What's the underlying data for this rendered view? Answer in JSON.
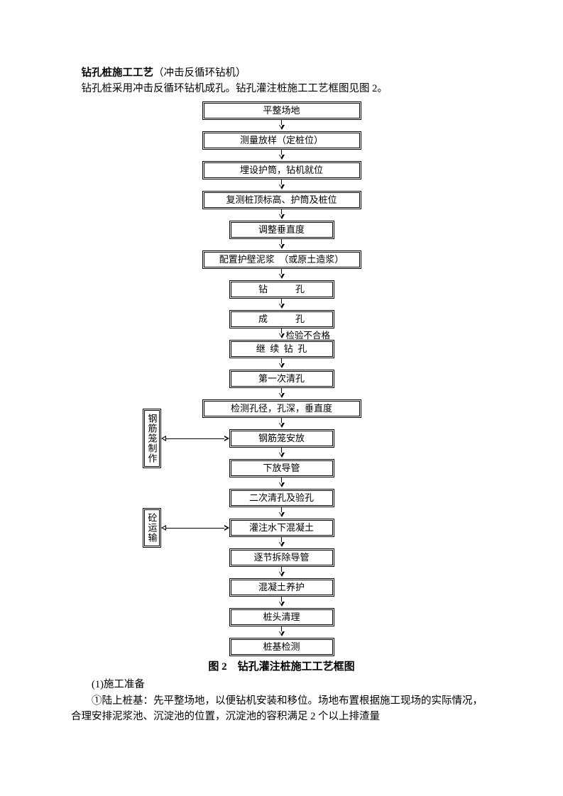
{
  "heading_bold": "钻孔桩施工工艺",
  "heading_rest": "（冲击反循环钻机）",
  "intro": "钻孔桩采用冲击反循环钻机成孔。钻孔灌注桩施工工艺框图见图 2。",
  "flow": {
    "steps": [
      {
        "t": "平整场地",
        "w": "wide"
      },
      {
        "t": "测量放样（定桩位）",
        "w": "wide"
      },
      {
        "t": "埋设护筒，钻机就位",
        "w": "wide"
      },
      {
        "t": "复测桩顶标高、护筒及桩位",
        "w": "wide"
      },
      {
        "t": "调整垂直度",
        "w": "narrow"
      },
      {
        "t": "配置护壁泥浆　（或原土造浆）",
        "w": "wide"
      },
      {
        "t": "钻　　　孔",
        "w": "narrow"
      },
      {
        "t": "成　　　孔",
        "w": "narrow",
        "after_label": "检验不合格"
      },
      {
        "t": "继 续 钻 孔",
        "w": "narrow"
      },
      {
        "t": "第一次清孔",
        "w": "narrow"
      },
      {
        "t": "检测孔径，孔深，垂直度",
        "w": "wide"
      },
      {
        "t": "钢筋笼安放",
        "w": "narrow",
        "side": {
          "key": "s1"
        }
      },
      {
        "t": "下放导管",
        "w": "narrow"
      },
      {
        "t": "二次清孔及验孔",
        "w": "narrow"
      },
      {
        "t": "灌注水下混凝土",
        "w": "narrow",
        "side": {
          "key": "s2"
        }
      },
      {
        "t": "逐节拆除导管",
        "w": "narrow"
      },
      {
        "t": "混凝土养护",
        "w": "narrow"
      },
      {
        "t": "桩头清理",
        "w": "narrow"
      },
      {
        "t": "桩基检测",
        "w": "narrow",
        "last": true
      }
    ],
    "side_labels": {
      "s1": "钢筋笼制作",
      "s2": "砼运输"
    }
  },
  "caption": "图 2 钻孔灌注桩施工工艺框图",
  "sec_num": "(1)施工准备",
  "body": "①陆上桩基：先平整场地，以便钻机安装和移位。场地布置根据施工现场的实际情况，合理安排泥浆池、沉淀池的位置，沉淀池的容积满足 2 个以上排渣量"
}
